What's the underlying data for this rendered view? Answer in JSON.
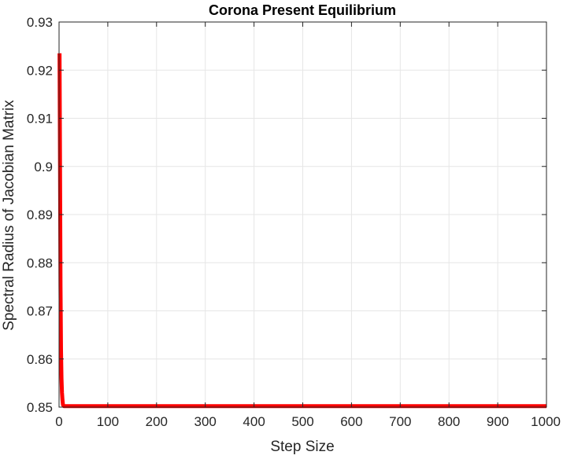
{
  "chart_data": {
    "type": "line",
    "title": "Corona Present Equilibrium",
    "xlabel": "Step Size",
    "ylabel": "Spectral Radius of Jacobian Matrix",
    "xlim": [
      0,
      1000
    ],
    "ylim": [
      0.85,
      0.93
    ],
    "xticks": [
      "0",
      "100",
      "200",
      "300",
      "400",
      "500",
      "600",
      "700",
      "800",
      "900",
      "1000"
    ],
    "yticks": [
      "0.85",
      "0.86",
      "0.87",
      "0.88",
      "0.89",
      "0.9",
      "0.91",
      "0.92",
      "0.93"
    ],
    "grid": true,
    "series": [
      {
        "color": "#ff0000",
        "x": [
          1,
          2,
          3,
          4,
          5,
          6,
          7,
          8,
          10,
          15,
          20,
          50,
          100,
          200,
          300,
          400,
          500,
          600,
          700,
          800,
          900,
          1000
        ],
        "y": [
          0.9235,
          0.9,
          0.875,
          0.862,
          0.856,
          0.853,
          0.8515,
          0.8505,
          0.8502,
          0.8502,
          0.8502,
          0.8502,
          0.8502,
          0.8502,
          0.8502,
          0.8502,
          0.8502,
          0.8502,
          0.8502,
          0.8502,
          0.8502,
          0.8502
        ]
      }
    ]
  }
}
